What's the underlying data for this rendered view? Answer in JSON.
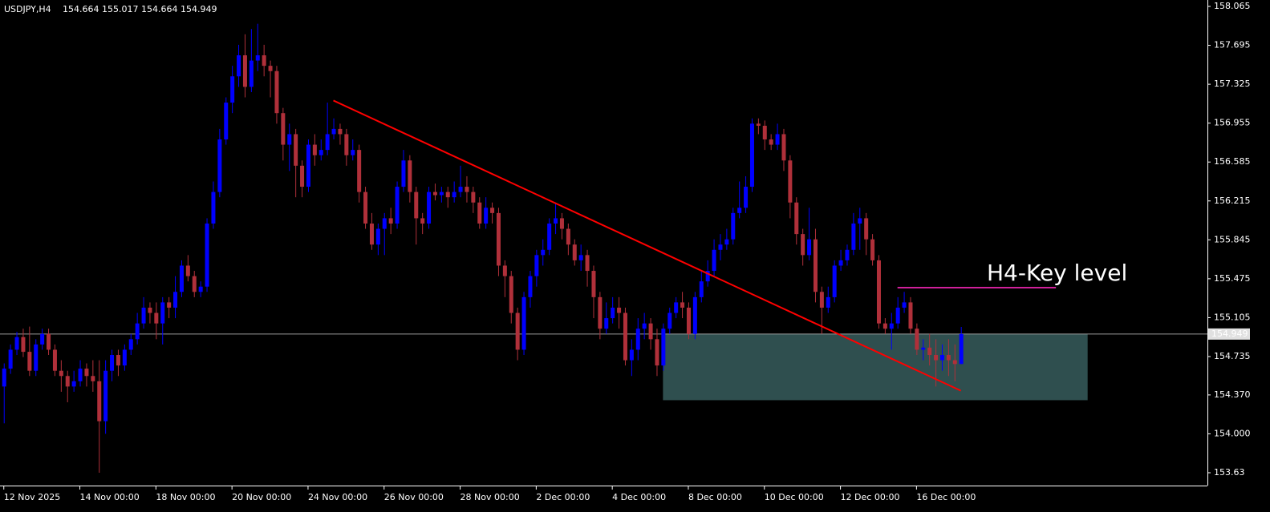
{
  "chart_data": {
    "type": "candlestick",
    "title": "USDJPY,H4",
    "up_color": "#0000ff",
    "down_color": "#b0303a",
    "ohlc": [
      [
        154.45,
        154.67,
        154.1,
        154.62
      ],
      [
        154.62,
        154.85,
        154.57,
        154.8
      ],
      [
        154.8,
        154.97,
        154.75,
        154.92
      ],
      [
        154.92,
        155.0,
        154.73,
        154.78
      ],
      [
        154.78,
        155.02,
        154.55,
        154.6
      ],
      [
        154.6,
        154.9,
        154.55,
        154.85
      ],
      [
        154.85,
        155.0,
        154.8,
        154.95
      ],
      [
        154.95,
        155.0,
        154.75,
        154.8
      ],
      [
        154.8,
        154.85,
        154.55,
        154.6
      ],
      [
        154.6,
        154.7,
        154.4,
        154.55
      ],
      [
        154.55,
        154.6,
        154.3,
        154.45
      ],
      [
        154.45,
        154.6,
        154.4,
        154.5
      ],
      [
        154.5,
        154.7,
        154.45,
        154.62
      ],
      [
        154.62,
        154.67,
        154.45,
        154.55
      ],
      [
        154.55,
        154.7,
        154.4,
        154.5
      ],
      [
        154.5,
        154.7,
        153.63,
        154.12
      ],
      [
        154.12,
        154.7,
        154.0,
        154.6
      ],
      [
        154.6,
        154.8,
        154.5,
        154.75
      ],
      [
        154.75,
        154.8,
        154.55,
        154.65
      ],
      [
        154.65,
        154.85,
        154.6,
        154.8
      ],
      [
        154.8,
        154.95,
        154.75,
        154.9
      ],
      [
        154.9,
        155.15,
        154.85,
        155.05
      ],
      [
        155.05,
        155.3,
        155.0,
        155.2
      ],
      [
        155.2,
        155.25,
        155.05,
        155.15
      ],
      [
        155.15,
        155.25,
        154.9,
        155.05
      ],
      [
        155.05,
        155.3,
        154.85,
        155.25
      ],
      [
        155.25,
        155.3,
        155.1,
        155.2
      ],
      [
        155.2,
        155.5,
        155.1,
        155.35
      ],
      [
        155.35,
        155.65,
        155.3,
        155.6
      ],
      [
        155.6,
        155.7,
        155.45,
        155.5
      ],
      [
        155.5,
        155.55,
        155.3,
        155.35
      ],
      [
        155.35,
        155.45,
        155.3,
        155.4
      ],
      [
        155.4,
        156.05,
        155.35,
        156.0
      ],
      [
        156.0,
        156.4,
        155.95,
        156.3
      ],
      [
        156.3,
        156.9,
        156.25,
        156.8
      ],
      [
        156.8,
        157.2,
        156.75,
        157.15
      ],
      [
        157.15,
        157.5,
        157.05,
        157.4
      ],
      [
        157.4,
        157.7,
        157.3,
        157.6
      ],
      [
        157.6,
        157.8,
        157.2,
        157.3
      ],
      [
        157.3,
        157.85,
        157.25,
        157.55
      ],
      [
        157.55,
        157.9,
        157.45,
        157.6
      ],
      [
        157.6,
        157.7,
        157.4,
        157.5
      ],
      [
        157.5,
        157.55,
        157.2,
        157.45
      ],
      [
        157.45,
        157.5,
        156.95,
        157.05
      ],
      [
        157.05,
        157.1,
        156.6,
        156.75
      ],
      [
        156.75,
        156.95,
        156.5,
        156.85
      ],
      [
        156.85,
        156.9,
        156.25,
        156.55
      ],
      [
        156.55,
        156.6,
        156.25,
        156.35
      ],
      [
        156.35,
        156.8,
        156.3,
        156.75
      ],
      [
        156.75,
        156.85,
        156.55,
        156.65
      ],
      [
        156.65,
        156.8,
        156.6,
        156.7
      ],
      [
        156.7,
        157.15,
        156.65,
        156.85
      ],
      [
        156.85,
        157.0,
        156.8,
        156.9
      ],
      [
        156.9,
        156.95,
        156.75,
        156.85
      ],
      [
        156.85,
        156.9,
        156.55,
        156.65
      ],
      [
        156.65,
        156.8,
        156.6,
        156.7
      ],
      [
        156.7,
        156.75,
        156.2,
        156.3
      ],
      [
        156.3,
        156.35,
        155.95,
        156.0
      ],
      [
        156.0,
        156.1,
        155.75,
        155.8
      ],
      [
        155.8,
        156.0,
        155.7,
        155.95
      ],
      [
        155.95,
        156.1,
        155.7,
        156.05
      ],
      [
        156.05,
        156.15,
        155.9,
        156.0
      ],
      [
        156.0,
        156.4,
        155.95,
        156.35
      ],
      [
        156.35,
        156.7,
        156.3,
        156.6
      ],
      [
        156.6,
        156.65,
        156.2,
        156.3
      ],
      [
        156.3,
        156.35,
        155.8,
        156.05
      ],
      [
        156.05,
        156.1,
        155.9,
        156.0
      ],
      [
        156.0,
        156.35,
        155.95,
        156.3
      ],
      [
        156.3,
        156.38,
        156.22,
        156.27
      ],
      [
        156.27,
        156.35,
        156.2,
        156.3
      ],
      [
        156.3,
        156.35,
        156.15,
        156.25
      ],
      [
        156.25,
        156.4,
        156.2,
        156.3
      ],
      [
        156.3,
        156.55,
        156.25,
        156.35
      ],
      [
        156.35,
        156.45,
        156.2,
        156.3
      ],
      [
        156.3,
        156.35,
        156.1,
        156.2
      ],
      [
        156.2,
        156.25,
        155.95,
        156.0
      ],
      [
        156.0,
        156.25,
        155.95,
        156.15
      ],
      [
        156.15,
        156.2,
        156.0,
        156.1
      ],
      [
        156.1,
        156.15,
        155.5,
        155.6
      ],
      [
        155.6,
        155.65,
        155.3,
        155.5
      ],
      [
        155.5,
        155.55,
        155.05,
        155.15
      ],
      [
        155.15,
        155.2,
        154.7,
        154.8
      ],
      [
        154.8,
        155.35,
        154.75,
        155.3
      ],
      [
        155.3,
        155.55,
        155.2,
        155.5
      ],
      [
        155.5,
        155.75,
        155.4,
        155.7
      ],
      [
        155.7,
        155.85,
        155.6,
        155.75
      ],
      [
        155.75,
        156.05,
        155.7,
        156.0
      ],
      [
        156.0,
        156.2,
        155.9,
        156.05
      ],
      [
        156.05,
        156.1,
        155.85,
        155.95
      ],
      [
        155.95,
        156.0,
        155.7,
        155.8
      ],
      [
        155.8,
        155.85,
        155.6,
        155.65
      ],
      [
        155.65,
        155.8,
        155.55,
        155.7
      ],
      [
        155.7,
        155.75,
        155.4,
        155.55
      ],
      [
        155.55,
        155.6,
        155.1,
        155.3
      ],
      [
        155.3,
        155.35,
        154.9,
        155.0
      ],
      [
        155.0,
        155.25,
        154.95,
        155.1
      ],
      [
        155.1,
        155.3,
        155.05,
        155.2
      ],
      [
        155.2,
        155.3,
        155.0,
        155.15
      ],
      [
        155.15,
        155.2,
        154.65,
        154.7
      ],
      [
        154.7,
        154.9,
        154.55,
        154.8
      ],
      [
        154.8,
        155.1,
        154.7,
        155.0
      ],
      [
        155.0,
        155.15,
        154.9,
        155.05
      ],
      [
        155.05,
        155.1,
        154.8,
        154.9
      ],
      [
        154.9,
        155.0,
        154.55,
        154.65
      ],
      [
        154.65,
        155.05,
        154.6,
        155.0
      ],
      [
        155.0,
        155.2,
        154.95,
        155.15
      ],
      [
        155.15,
        155.3,
        155.1,
        155.25
      ],
      [
        155.25,
        155.35,
        155.1,
        155.2
      ],
      [
        155.2,
        155.25,
        154.9,
        154.95
      ],
      [
        154.95,
        155.35,
        154.9,
        155.3
      ],
      [
        155.3,
        155.55,
        155.25,
        155.45
      ],
      [
        155.45,
        155.65,
        155.4,
        155.55
      ],
      [
        155.55,
        155.85,
        155.5,
        155.75
      ],
      [
        155.75,
        155.9,
        155.65,
        155.8
      ],
      [
        155.8,
        155.95,
        155.75,
        155.85
      ],
      [
        155.85,
        156.15,
        155.8,
        156.1
      ],
      [
        156.1,
        156.4,
        156.05,
        156.15
      ],
      [
        156.15,
        156.45,
        156.1,
        156.35
      ],
      [
        156.35,
        157.0,
        156.3,
        156.95
      ],
      [
        156.95,
        157.0,
        156.85,
        156.93
      ],
      [
        156.93,
        156.98,
        156.7,
        156.8
      ],
      [
        156.8,
        156.85,
        156.7,
        156.75
      ],
      [
        156.75,
        156.95,
        156.7,
        156.85
      ],
      [
        156.85,
        156.9,
        156.5,
        156.6
      ],
      [
        156.6,
        156.65,
        156.05,
        156.2
      ],
      [
        156.2,
        156.25,
        155.8,
        155.9
      ],
      [
        155.9,
        155.95,
        155.6,
        155.7
      ],
      [
        155.7,
        156.15,
        155.65,
        155.85
      ],
      [
        155.85,
        155.95,
        155.25,
        155.35
      ],
      [
        155.35,
        155.4,
        154.95,
        155.2
      ],
      [
        155.2,
        155.4,
        155.15,
        155.3
      ],
      [
        155.3,
        155.65,
        155.25,
        155.6
      ],
      [
        155.6,
        155.75,
        155.55,
        155.65
      ],
      [
        155.65,
        155.8,
        155.6,
        155.75
      ],
      [
        155.75,
        156.1,
        155.7,
        156.0
      ],
      [
        156.0,
        156.15,
        155.75,
        156.05
      ],
      [
        156.05,
        156.1,
        155.7,
        155.85
      ],
      [
        155.85,
        155.9,
        155.6,
        155.65
      ],
      [
        155.65,
        155.7,
        155.0,
        155.05
      ],
      [
        155.05,
        155.1,
        154.95,
        155.0
      ],
      [
        155.0,
        155.15,
        154.8,
        155.05
      ],
      [
        155.05,
        155.3,
        155.0,
        155.2
      ],
      [
        155.2,
        155.35,
        155.15,
        155.25
      ],
      [
        155.25,
        155.3,
        154.95,
        155.0
      ],
      [
        155.0,
        155.05,
        154.75,
        154.8
      ],
      [
        154.8,
        154.9,
        154.7,
        154.82
      ],
      [
        154.82,
        154.95,
        154.65,
        154.75
      ],
      [
        154.75,
        154.9,
        154.45,
        154.7
      ],
      [
        154.7,
        154.85,
        154.6,
        154.75
      ],
      [
        154.75,
        154.9,
        154.55,
        154.7
      ],
      [
        154.7,
        154.85,
        154.5,
        154.664
      ],
      [
        154.664,
        155.017,
        154.664,
        154.949
      ]
    ],
    "xlim": [
      -0.6,
      189.9
    ],
    "xticks": [
      {
        "value": 0,
        "label": "12 Nov 2025"
      },
      {
        "value": 12,
        "label": "14 Nov 00:00"
      },
      {
        "value": 24,
        "label": "18 Nov 00:00"
      },
      {
        "value": 36,
        "label": "20 Nov 00:00"
      },
      {
        "value": 48,
        "label": "24 Nov 00:00"
      },
      {
        "value": 60,
        "label": "26 Nov 00:00"
      },
      {
        "value": 72,
        "label": "28 Nov 00:00"
      },
      {
        "value": 84,
        "label": "2 Dec 00:00"
      },
      {
        "value": 96,
        "label": "4 Dec 00:00"
      },
      {
        "value": 108,
        "label": "8 Dec 00:00"
      },
      {
        "value": 120,
        "label": "10 Dec 00:00"
      },
      {
        "value": 132,
        "label": "12 Dec 00:00"
      },
      {
        "value": 144,
        "label": "16 Dec 00:00"
      }
    ],
    "ylim": [
      153.508,
      158.126
    ],
    "yticks": [
      158.065,
      157.695,
      157.325,
      156.955,
      156.585,
      156.215,
      155.845,
      155.475,
      155.105,
      154.735,
      {
        "value": 154.37,
        "label": "154.370"
      },
      {
        "value": 154,
        "label": "154.000"
      },
      153.63
    ],
    "trendline": {
      "color": "#ff0000",
      "from": [
        52,
        157.17
      ],
      "to": [
        151,
        154.41
      ]
    },
    "zone": {
      "color": "#2f4f4f",
      "from_index": 104,
      "to_index": 171,
      "top": 154.949,
      "bottom": 154.32
    },
    "key_level": {
      "label": "H4-Key level",
      "color": "#d0209a",
      "value": 155.39,
      "from_index": 141,
      "to_index": 166
    }
  }
}
